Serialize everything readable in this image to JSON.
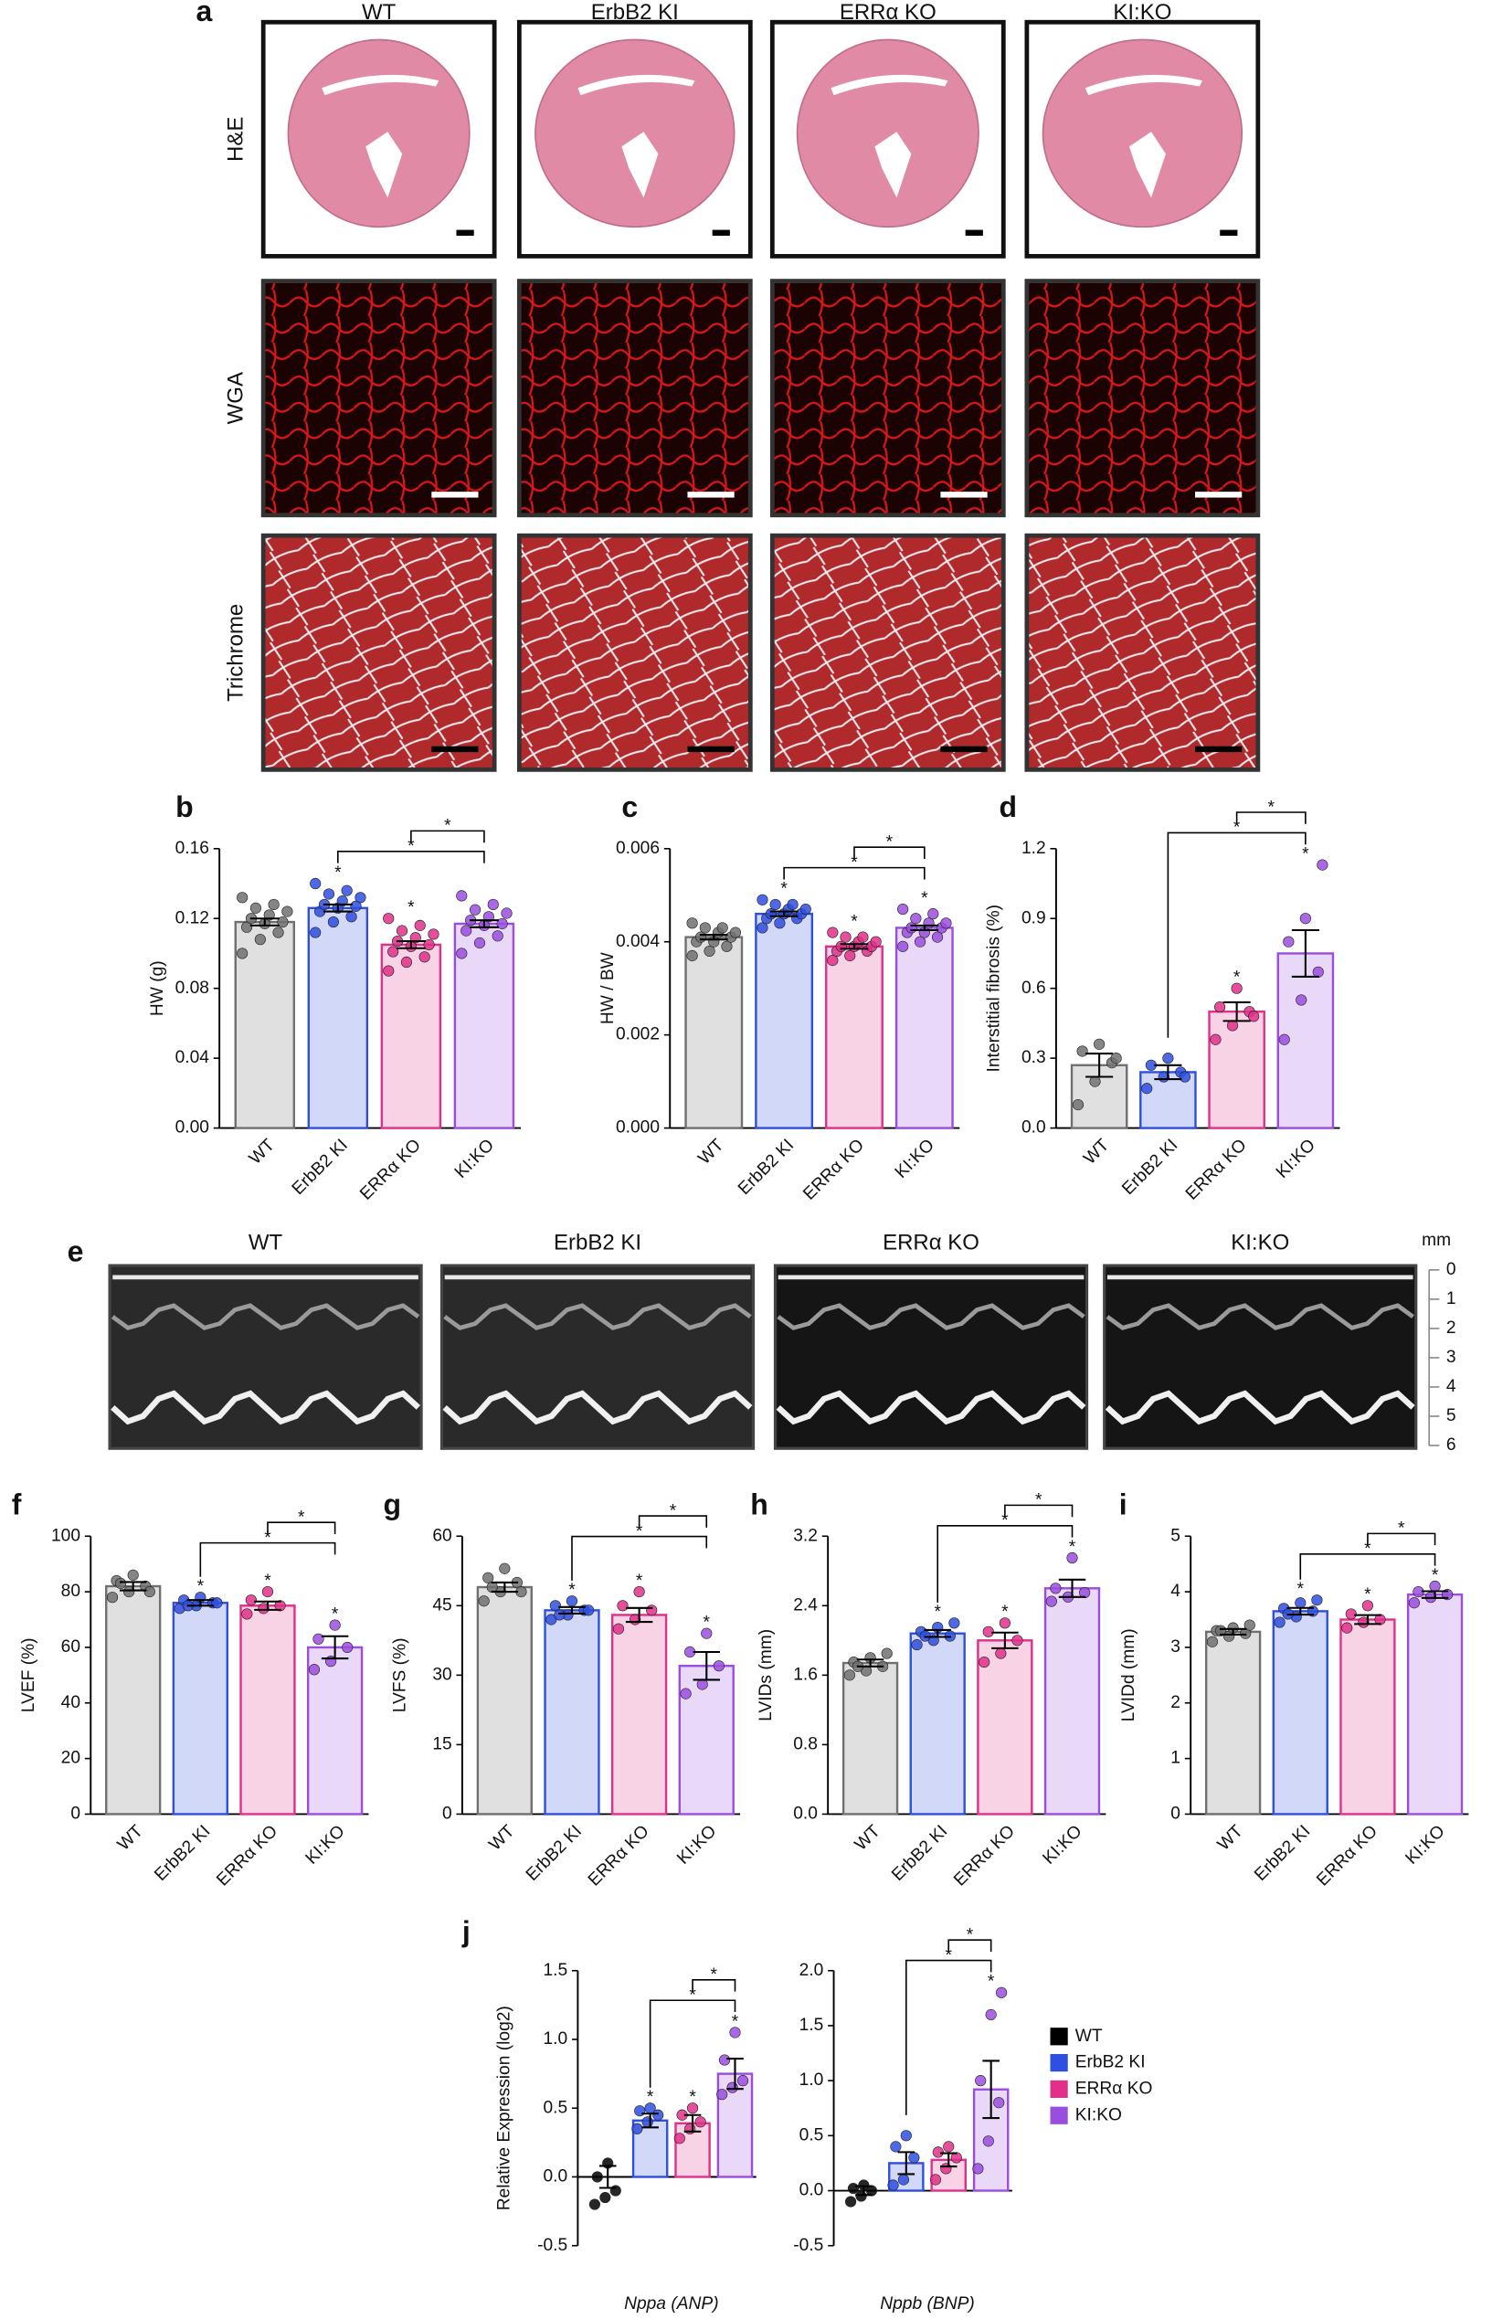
{
  "histology": {
    "label": "a",
    "columns": [
      "WT",
      "ErbB2 KI",
      "ERRα KO",
      "KI:KO"
    ],
    "rows": [
      "H&E",
      "WGA",
      "Trichrome"
    ]
  },
  "mmode": {
    "label": "e",
    "columns": [
      "WT",
      "ErbB2 KI",
      "ERRα KO",
      "KI:KO"
    ],
    "unit": "mm",
    "ticks": [
      0,
      1,
      2,
      3,
      4,
      5,
      6
    ]
  },
  "chart_data": [
    {
      "type": "bar",
      "panel": "b",
      "ylabel": "HW (g)",
      "marker": "*",
      "categories": [
        "WT",
        "ErbB2 KI",
        "ERRα KO",
        "KI:KO"
      ],
      "colors": [
        "#707070",
        "#2f4fe0",
        "#e0308a",
        "#9b4de0"
      ],
      "values": [
        0.118,
        0.126,
        0.105,
        0.117
      ],
      "errors": [
        0.002,
        0.002,
        0.002,
        0.002
      ],
      "points": [
        [
          0.1,
          0.108,
          0.112,
          0.115,
          0.117,
          0.118,
          0.12,
          0.122,
          0.124,
          0.126,
          0.128,
          0.132
        ],
        [
          0.112,
          0.118,
          0.121,
          0.124,
          0.126,
          0.127,
          0.128,
          0.13,
          0.132,
          0.134,
          0.136,
          0.14
        ],
        [
          0.09,
          0.095,
          0.098,
          0.101,
          0.104,
          0.105,
          0.107,
          0.109,
          0.111,
          0.113,
          0.116,
          0.12
        ],
        [
          0.1,
          0.106,
          0.11,
          0.113,
          0.116,
          0.117,
          0.119,
          0.121,
          0.123,
          0.125,
          0.128,
          0.133
        ]
      ],
      "stars": [
        false,
        true,
        true,
        false
      ],
      "comparisons": [
        [
          1,
          3
        ],
        [
          2,
          3
        ]
      ],
      "ylim": [
        0,
        0.16
      ],
      "yticks": [
        {
          "value": 0,
          "label": "0.00"
        },
        0.04,
        0.08,
        0.12,
        0.16
      ]
    },
    {
      "type": "bar",
      "panel": "c",
      "ylabel": "HW / BW",
      "marker": "*",
      "categories": [
        "WT",
        "ErbB2 KI",
        "ERRα KO",
        "KI:KO"
      ],
      "colors": [
        "#707070",
        "#2f4fe0",
        "#e0308a",
        "#9b4de0"
      ],
      "values": [
        0.0041,
        0.0046,
        0.0039,
        0.0043
      ],
      "errors": [
        5e-05,
        5e-05,
        5e-05,
        5e-05
      ],
      "points": [
        [
          0.0037,
          0.0038,
          0.0039,
          0.004,
          0.004,
          0.0041,
          0.0041,
          0.0042,
          0.0042,
          0.0043,
          0.0043,
          0.0044
        ],
        [
          0.0043,
          0.0044,
          0.0045,
          0.0045,
          0.0046,
          0.0046,
          0.0046,
          0.0047,
          0.0047,
          0.0048,
          0.0048,
          0.0049
        ],
        [
          0.0036,
          0.0037,
          0.0038,
          0.0038,
          0.0039,
          0.0039,
          0.0039,
          0.004,
          0.004,
          0.0041,
          0.0041,
          0.0042
        ],
        [
          0.0039,
          0.004,
          0.0041,
          0.0042,
          0.0042,
          0.0043,
          0.0043,
          0.0044,
          0.0044,
          0.0045,
          0.0046,
          0.0047
        ]
      ],
      "stars": [
        false,
        true,
        true,
        true
      ],
      "comparisons": [
        [
          1,
          3
        ],
        [
          2,
          3
        ]
      ],
      "ylim": [
        0,
        0.006
      ],
      "yticks": [
        {
          "value": 0,
          "label": "0.000"
        },
        0.002,
        0.004,
        0.006
      ]
    },
    {
      "type": "bar",
      "panel": "d",
      "ylabel": "Interstitial fibrosis (%)",
      "marker": "*",
      "categories": [
        "WT",
        "ErbB2 KI",
        "ERRα KO",
        "KI:KO"
      ],
      "colors": [
        "#707070",
        "#2f4fe0",
        "#e0308a",
        "#9b4de0"
      ],
      "values": [
        0.27,
        0.24,
        0.5,
        0.75
      ],
      "errors": [
        0.05,
        0.03,
        0.04,
        0.1
      ],
      "points": [
        [
          0.1,
          0.2,
          0.28,
          0.33,
          0.36,
          0.3
        ],
        [
          0.17,
          0.22,
          0.24,
          0.27,
          0.3,
          0.22
        ],
        [
          0.38,
          0.44,
          0.5,
          0.52,
          0.6,
          0.48
        ],
        [
          0.38,
          0.55,
          0.67,
          0.8,
          0.9,
          1.13
        ]
      ],
      "stars": [
        false,
        false,
        true,
        true
      ],
      "comparisons": [
        [
          1,
          3
        ],
        [
          2,
          3
        ]
      ],
      "ylim": [
        0,
        1.2
      ],
      "yticks": [
        {
          "value": 0,
          "label": "0.0"
        },
        0.3,
        0.6,
        0.9,
        1.2
      ]
    },
    {
      "type": "bar",
      "panel": "f",
      "ylabel": "LVEF (%)",
      "marker": "*",
      "categories": [
        "WT",
        "ErbB2 KI",
        "ERRα KO",
        "KI:KO"
      ],
      "colors": [
        "#707070",
        "#2f4fe0",
        "#e0308a",
        "#9b4de0"
      ],
      "values": [
        82,
        76,
        75,
        60
      ],
      "errors": [
        1.5,
        1,
        1.5,
        4
      ],
      "points": [
        [
          78,
          80,
          82,
          84,
          86,
          80,
          83
        ],
        [
          74,
          75,
          76,
          77,
          78,
          76,
          75
        ],
        [
          72,
          74,
          75,
          77,
          80
        ],
        [
          52,
          55,
          60,
          63,
          68
        ]
      ],
      "stars": [
        false,
        true,
        true,
        true
      ],
      "comparisons": [
        [
          1,
          3
        ],
        [
          2,
          3
        ]
      ],
      "ylim": [
        0,
        100
      ],
      "yticks": [
        0,
        20,
        40,
        60,
        80,
        100
      ]
    },
    {
      "type": "bar",
      "panel": "g",
      "ylabel": "LVFS (%)",
      "marker": "*",
      "categories": [
        "WT",
        "ErbB2 KI",
        "ERRα KO",
        "KI:KO"
      ],
      "colors": [
        "#707070",
        "#2f4fe0",
        "#e0308a",
        "#9b4de0"
      ],
      "values": [
        49,
        44,
        43,
        32
      ],
      "errors": [
        1,
        0.7,
        1.5,
        3
      ],
      "points": [
        [
          46,
          48,
          50,
          51,
          53,
          48,
          49
        ],
        [
          42,
          43,
          44,
          45,
          46,
          44,
          43
        ],
        [
          40,
          42,
          44,
          45,
          48
        ],
        [
          26,
          28,
          32,
          35,
          39
        ]
      ],
      "stars": [
        false,
        true,
        true,
        true
      ],
      "comparisons": [
        [
          1,
          3
        ],
        [
          2,
          3
        ]
      ],
      "ylim": [
        0,
        60
      ],
      "yticks": [
        0,
        15,
        30,
        45,
        60
      ]
    },
    {
      "type": "bar",
      "panel": "h",
      "ylabel": "LVIDs (mm)",
      "marker": "*",
      "categories": [
        "WT",
        "ErbB2 KI",
        "ERRα KO",
        "KI:KO"
      ],
      "colors": [
        "#707070",
        "#2f4fe0",
        "#e0308a",
        "#9b4de0"
      ],
      "values": [
        1.74,
        2.08,
        2.0,
        2.6
      ],
      "errors": [
        0.04,
        0.04,
        0.09,
        0.1
      ],
      "points": [
        [
          1.6,
          1.65,
          1.7,
          1.75,
          1.8,
          1.85,
          1.7
        ],
        [
          1.95,
          2.0,
          2.05,
          2.1,
          2.15,
          2.2,
          2.05
        ],
        [
          1.75,
          1.85,
          2.0,
          2.1,
          2.2
        ],
        [
          2.45,
          2.5,
          2.55,
          2.6,
          2.95
        ]
      ],
      "stars": [
        false,
        true,
        true,
        true
      ],
      "comparisons": [
        [
          1,
          3
        ],
        [
          2,
          3
        ]
      ],
      "ylim": [
        0,
        3.2
      ],
      "yticks": [
        {
          "value": 0,
          "label": "0.0"
        },
        0.8,
        1.6,
        2.4,
        3.2
      ]
    },
    {
      "type": "bar",
      "panel": "i",
      "ylabel": "LVIDd (mm)",
      "marker": "*",
      "categories": [
        "WT",
        "ErbB2 KI",
        "ERRα KO",
        "KI:KO"
      ],
      "colors": [
        "#707070",
        "#2f4fe0",
        "#e0308a",
        "#9b4de0"
      ],
      "values": [
        3.28,
        3.65,
        3.5,
        3.95
      ],
      "errors": [
        0.05,
        0.06,
        0.08,
        0.06
      ],
      "points": [
        [
          3.1,
          3.2,
          3.25,
          3.3,
          3.35,
          3.4,
          3.3
        ],
        [
          3.45,
          3.55,
          3.65,
          3.7,
          3.8,
          3.85,
          3.6
        ],
        [
          3.35,
          3.45,
          3.5,
          3.6,
          3.75
        ],
        [
          3.8,
          3.9,
          3.95,
          4.0,
          4.1
        ]
      ],
      "stars": [
        false,
        true,
        true,
        true
      ],
      "comparisons": [
        [
          1,
          3
        ],
        [
          2,
          3
        ]
      ],
      "ylim": [
        0,
        5
      ],
      "yticks": [
        0,
        1,
        2,
        3,
        4,
        5
      ]
    },
    {
      "type": "bar",
      "panel": "j",
      "ylabel": "Relative Expression (log2)",
      "xlabel": "Nppa (ANP)",
      "marker": "*",
      "categories": [
        "WT",
        "ErbB2 KI",
        "ERRα KO",
        "KI:KO"
      ],
      "colors": [
        "#000000",
        "#2f4fe0",
        "#e0308a",
        "#9b4de0"
      ],
      "values": [
        0.0,
        0.41,
        0.39,
        0.75
      ],
      "errors": [
        0.08,
        0.05,
        0.06,
        0.11
      ],
      "points": [
        [
          -0.2,
          -0.15,
          -0.1,
          0.0,
          0.1
        ],
        [
          0.35,
          0.4,
          0.45,
          0.48,
          0.5
        ],
        [
          0.28,
          0.35,
          0.4,
          0.45,
          0.5
        ],
        [
          0.6,
          0.65,
          0.7,
          0.85,
          1.05
        ]
      ],
      "stars": [
        false,
        true,
        true,
        true
      ],
      "comparisons": [
        [
          1,
          3
        ],
        [
          2,
          3
        ]
      ],
      "ylim": [
        -0.5,
        1.5
      ],
      "yticks": [
        -0.5,
        {
          "value": 0,
          "label": "0.0"
        },
        0.5,
        {
          "value": 1,
          "label": "1.0"
        },
        1.5
      ]
    },
    {
      "type": "bar",
      "xlabel": "Nppb (BNP)",
      "marker": "*",
      "legend": true,
      "categories": [
        "WT",
        "ErbB2 KI",
        "ERRα KO",
        "KI:KO"
      ],
      "colors": [
        "#000000",
        "#2f4fe0",
        "#e0308a",
        "#9b4de0"
      ],
      "values": [
        0.0,
        0.25,
        0.28,
        0.92
      ],
      "errors": [
        0.04,
        0.1,
        0.06,
        0.26
      ],
      "points": [
        [
          -0.1,
          -0.05,
          0.0,
          0.02,
          0.05
        ],
        [
          0.05,
          0.1,
          0.3,
          0.4,
          0.5
        ],
        [
          0.1,
          0.2,
          0.3,
          0.35,
          0.4
        ],
        [
          0.2,
          0.45,
          0.8,
          1.0,
          1.6,
          1.8
        ]
      ],
      "stars": [
        false,
        false,
        false,
        true
      ],
      "comparisons": [
        [
          1,
          3
        ],
        [
          2,
          3
        ]
      ],
      "ylim": [
        -0.5,
        2.0
      ],
      "yticks": [
        -0.5,
        {
          "value": 0,
          "label": "0.0"
        },
        0.5,
        {
          "value": 1,
          "label": "1.0"
        },
        1.5,
        {
          "value": 2,
          "label": "2.0"
        }
      ]
    }
  ]
}
